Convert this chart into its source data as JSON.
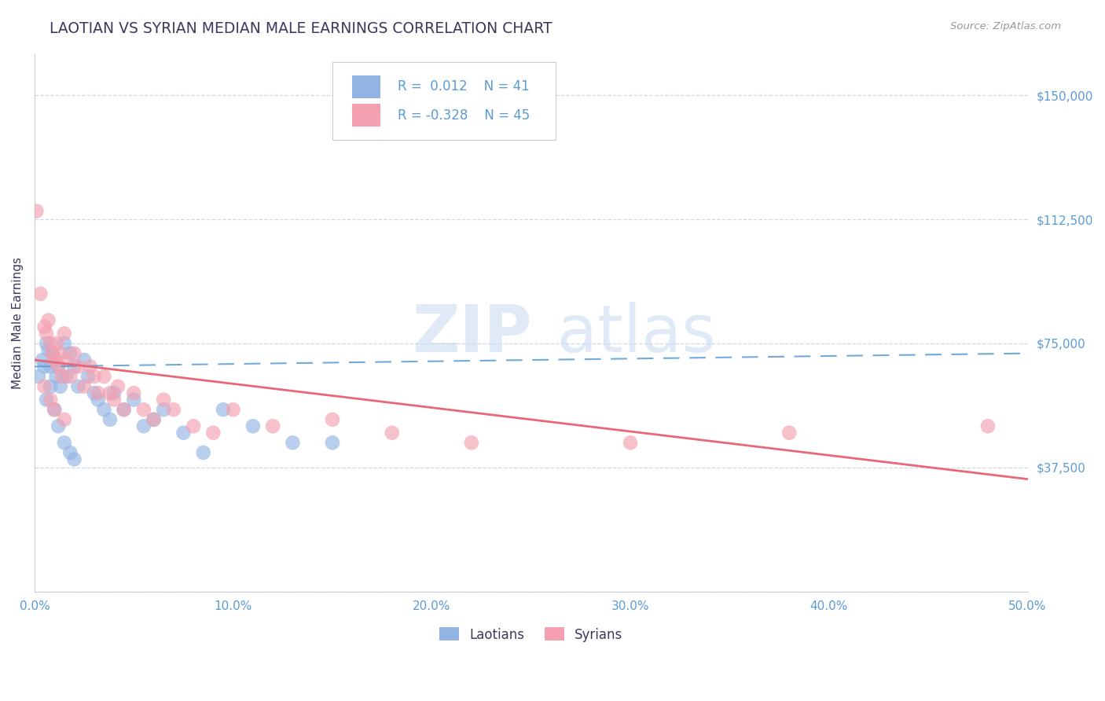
{
  "title": "LAOTIAN VS SYRIAN MEDIAN MALE EARNINGS CORRELATION CHART",
  "source": "Source: ZipAtlas.com",
  "ylabel": "Median Male Earnings",
  "xlim": [
    0.0,
    0.5
  ],
  "ylim": [
    0,
    162500
  ],
  "yticks": [
    0,
    37500,
    75000,
    112500,
    150000
  ],
  "ytick_labels": [
    "",
    "$37,500",
    "$75,000",
    "$112,500",
    "$150,000"
  ],
  "xticks": [
    0.0,
    0.1,
    0.2,
    0.3,
    0.4,
    0.5
  ],
  "xtick_labels": [
    "0.0%",
    "10.0%",
    "20.0%",
    "30.0%",
    "40.0%",
    "50.0%"
  ],
  "laotian_color": "#92b4e3",
  "syrian_color": "#f4a0b0",
  "laotian_R": 0.012,
  "laotian_N": 41,
  "syrian_R": -0.328,
  "syrian_N": 45,
  "title_color": "#3a3a5c",
  "legend_text_color": "#5b9bd5",
  "axis_tick_color": "#5b9bd5",
  "grid_color": "#c8d4e8",
  "trend_blue": "#5b9bd5",
  "trend_pink": "#e8687a",
  "laotian_trend_y0": 68000,
  "laotian_trend_y1": 72000,
  "syrian_trend_y0": 70000,
  "syrian_trend_y1": 34000,
  "laotian_x": [
    0.002,
    0.004,
    0.005,
    0.006,
    0.007,
    0.008,
    0.009,
    0.01,
    0.011,
    0.012,
    0.013,
    0.015,
    0.016,
    0.018,
    0.02,
    0.022,
    0.025,
    0.027,
    0.03,
    0.032,
    0.035,
    0.038,
    0.04,
    0.045,
    0.05,
    0.055,
    0.06,
    0.065,
    0.075,
    0.085,
    0.095,
    0.11,
    0.13,
    0.15,
    0.006,
    0.008,
    0.01,
    0.012,
    0.015,
    0.018,
    0.02
  ],
  "laotian_y": [
    65000,
    70000,
    68000,
    75000,
    73000,
    68000,
    72000,
    70000,
    65000,
    68000,
    62000,
    75000,
    65000,
    72000,
    68000,
    62000,
    70000,
    65000,
    60000,
    58000,
    55000,
    52000,
    60000,
    55000,
    58000,
    50000,
    52000,
    55000,
    48000,
    42000,
    55000,
    50000,
    45000,
    45000,
    58000,
    62000,
    55000,
    50000,
    45000,
    42000,
    40000
  ],
  "syrian_x": [
    0.001,
    0.003,
    0.005,
    0.006,
    0.007,
    0.008,
    0.009,
    0.01,
    0.011,
    0.012,
    0.013,
    0.014,
    0.015,
    0.016,
    0.018,
    0.02,
    0.022,
    0.025,
    0.028,
    0.03,
    0.032,
    0.035,
    0.038,
    0.04,
    0.042,
    0.045,
    0.05,
    0.055,
    0.06,
    0.065,
    0.07,
    0.08,
    0.09,
    0.1,
    0.12,
    0.15,
    0.18,
    0.22,
    0.3,
    0.005,
    0.008,
    0.01,
    0.015,
    0.38,
    0.48
  ],
  "syrian_y": [
    115000,
    90000,
    80000,
    78000,
    82000,
    75000,
    72000,
    70000,
    75000,
    68000,
    72000,
    65000,
    78000,
    70000,
    65000,
    72000,
    68000,
    62000,
    68000,
    65000,
    60000,
    65000,
    60000,
    58000,
    62000,
    55000,
    60000,
    55000,
    52000,
    58000,
    55000,
    50000,
    48000,
    55000,
    50000,
    52000,
    48000,
    45000,
    45000,
    62000,
    58000,
    55000,
    52000,
    48000,
    50000
  ]
}
